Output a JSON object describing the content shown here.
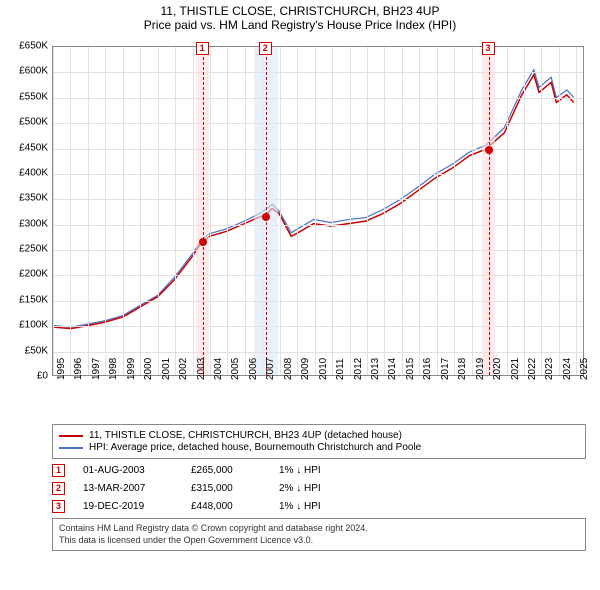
{
  "title": "11, THISTLE CLOSE, CHRISTCHURCH, BH23 4UP",
  "subtitle": "Price paid vs. HM Land Registry's House Price Index (HPI)",
  "chart": {
    "type": "line",
    "xlim": [
      1995,
      2025.5
    ],
    "ylim": [
      0,
      650000
    ],
    "ytick_step": 50000,
    "yticks_labels": [
      "£0",
      "£50K",
      "£100K",
      "£150K",
      "£200K",
      "£250K",
      "£300K",
      "£350K",
      "£400K",
      "£450K",
      "£500K",
      "£550K",
      "£600K",
      "£650K"
    ],
    "xticks": [
      1995,
      1996,
      1997,
      1998,
      1999,
      2000,
      2001,
      2002,
      2003,
      2004,
      2005,
      2006,
      2007,
      2008,
      2009,
      2010,
      2011,
      2012,
      2013,
      2014,
      2015,
      2016,
      2017,
      2018,
      2019,
      2020,
      2021,
      2022,
      2023,
      2024,
      2025
    ],
    "grid_color": "#e0e0e0",
    "background_color": "#ffffff",
    "border_color": "#888888",
    "series": [
      {
        "name": "11, THISTLE CLOSE, CHRISTCHURCH, BH23 4UP (detached house)",
        "color": "#c80000",
        "width": 1.5,
        "data": [
          [
            1995,
            95000
          ],
          [
            1996,
            92000
          ],
          [
            1997,
            98000
          ],
          [
            1998,
            105000
          ],
          [
            1999,
            115000
          ],
          [
            2000,
            135000
          ],
          [
            2001,
            155000
          ],
          [
            2002,
            190000
          ],
          [
            2003,
            235000
          ],
          [
            2003.58,
            265000
          ],
          [
            2004,
            275000
          ],
          [
            2005,
            285000
          ],
          [
            2006,
            300000
          ],
          [
            2007,
            315000
          ],
          [
            2007.2,
            315000
          ],
          [
            2007.6,
            330000
          ],
          [
            2008,
            320000
          ],
          [
            2008.7,
            275000
          ],
          [
            2009,
            280000
          ],
          [
            2010,
            300000
          ],
          [
            2011,
            295000
          ],
          [
            2012,
            300000
          ],
          [
            2013,
            305000
          ],
          [
            2014,
            320000
          ],
          [
            2015,
            340000
          ],
          [
            2016,
            365000
          ],
          [
            2017,
            390000
          ],
          [
            2018,
            410000
          ],
          [
            2019,
            435000
          ],
          [
            2019.97,
            448000
          ],
          [
            2020,
            450000
          ],
          [
            2021,
            480000
          ],
          [
            2022,
            555000
          ],
          [
            2022.7,
            595000
          ],
          [
            2023,
            560000
          ],
          [
            2023.7,
            580000
          ],
          [
            2024,
            540000
          ],
          [
            2024.6,
            555000
          ],
          [
            2025,
            540000
          ]
        ]
      },
      {
        "name": "HPI: Average price, detached house, Bournemouth Christchurch and Poole",
        "color": "#4a6fc8",
        "width": 1.2,
        "data": [
          [
            1995,
            98000
          ],
          [
            1996,
            95000
          ],
          [
            1997,
            101000
          ],
          [
            1998,
            108000
          ],
          [
            1999,
            118000
          ],
          [
            2000,
            138000
          ],
          [
            2001,
            158000
          ],
          [
            2002,
            195000
          ],
          [
            2003,
            240000
          ],
          [
            2003.58,
            270000
          ],
          [
            2004,
            280000
          ],
          [
            2005,
            290000
          ],
          [
            2006,
            305000
          ],
          [
            2007,
            322000
          ],
          [
            2007.6,
            338000
          ],
          [
            2008,
            325000
          ],
          [
            2008.7,
            282000
          ],
          [
            2009,
            288000
          ],
          [
            2010,
            308000
          ],
          [
            2011,
            302000
          ],
          [
            2012,
            308000
          ],
          [
            2013,
            312000
          ],
          [
            2014,
            328000
          ],
          [
            2015,
            348000
          ],
          [
            2016,
            372000
          ],
          [
            2017,
            398000
          ],
          [
            2018,
            418000
          ],
          [
            2019,
            442000
          ],
          [
            2019.97,
            456000
          ],
          [
            2020,
            458000
          ],
          [
            2021,
            490000
          ],
          [
            2022,
            565000
          ],
          [
            2022.7,
            605000
          ],
          [
            2023,
            570000
          ],
          [
            2023.7,
            590000
          ],
          [
            2024,
            550000
          ],
          [
            2024.6,
            565000
          ],
          [
            2025,
            550000
          ]
        ]
      }
    ],
    "sale_points": [
      {
        "x": 2003.58,
        "y": 265000
      },
      {
        "x": 2007.2,
        "y": 315000
      },
      {
        "x": 2019.97,
        "y": 448000
      }
    ],
    "markers": [
      {
        "label": "1",
        "x": 2003.58,
        "shade_x0": 2003.2,
        "shade_x1": 2003.95,
        "shade_color": "#fde0e0",
        "line_color": "#d00000"
      },
      {
        "label": "2",
        "x": 2007.2,
        "shade_x0": 2006.5,
        "shade_x1": 2007.9,
        "shade_color": "#dce6f5",
        "line_color": "#d00000"
      },
      {
        "label": "3",
        "x": 2019.97,
        "shade_x0": 2019.6,
        "shade_x1": 2020.35,
        "shade_color": "#fde0e0",
        "line_color": "#d00000"
      }
    ]
  },
  "legend": {
    "items": [
      {
        "color": "#c80000",
        "label": "11, THISTLE CLOSE, CHRISTCHURCH, BH23 4UP (detached house)"
      },
      {
        "color": "#4a6fc8",
        "label": "HPI: Average price, detached house, Bournemouth Christchurch and Poole"
      }
    ]
  },
  "events": [
    {
      "num": "1",
      "date": "01-AUG-2003",
      "price": "£265,000",
      "delta": "1% ↓ HPI"
    },
    {
      "num": "2",
      "date": "13-MAR-2007",
      "price": "£315,000",
      "delta": "2% ↓ HPI"
    },
    {
      "num": "3",
      "date": "19-DEC-2019",
      "price": "£448,000",
      "delta": "1% ↓ HPI"
    }
  ],
  "footer": {
    "line1": "Contains HM Land Registry data © Crown copyright and database right 2024.",
    "line2": "This data is licensed under the Open Government Licence v3.0."
  }
}
